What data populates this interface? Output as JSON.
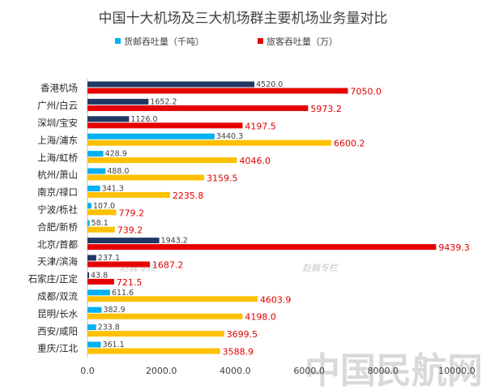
{
  "chart_data": {
    "type": "bar",
    "orientation": "horizontal",
    "title": "中国十大机场及三大机场群主要机场业务量对比",
    "categories": [
      "香港机场",
      "广州/白云",
      "深圳/宝安",
      "上海/浦东",
      "上海/虹桥",
      "杭州/萧山",
      "南京/禄口",
      "宁波/栎社",
      "合肥/新桥",
      "北京/首都",
      "天津/滨海",
      "石家庄/正定",
      "成都/双流",
      "昆明/长水",
      "西安/咸阳",
      "重庆/江北"
    ],
    "series": [
      {
        "name": "货邮吞吐量（千吨）",
        "values": [
          4520.0,
          1652.2,
          1126.0,
          3440.3,
          428.9,
          488.0,
          341.3,
          107.0,
          58.1,
          1943.2,
          237.1,
          43.8,
          611.6,
          382.9,
          233.8,
          361.1
        ],
        "labels": [
          "4520.0",
          "1652.2",
          "1126.0",
          "3440.3",
          "428.9",
          "488.0",
          "341.3",
          "107.0",
          "58.1",
          "1943.2",
          "237.1",
          "43.8",
          "611.6",
          "382.9",
          "233.8",
          "361.1"
        ]
      },
      {
        "name": "旅客吞吐量（万）",
        "values": [
          7050.0,
          5973.2,
          4197.5,
          6600.2,
          4046.0,
          3159.5,
          2235.8,
          779.2,
          739.2,
          9439.3,
          1687.2,
          721.5,
          4603.9,
          4198.0,
          3699.5,
          3588.9
        ],
        "labels": [
          "7050.0",
          "5973.2",
          "4197.5",
          "6600.2",
          "4046.0",
          "3159.5",
          "2235.8",
          "779.2",
          "739.2",
          "9439.3",
          "1687.2",
          "721.5",
          "4603.9",
          "4198.0",
          "3699.5",
          "3588.9"
        ]
      }
    ],
    "freight_colors": [
      "#1f3864",
      "#1f3864",
      "#1f3864",
      "#00b0f0",
      "#00b0f0",
      "#00b0f0",
      "#00b0f0",
      "#00b0f0",
      "#00b0f0",
      "#1f3864",
      "#1f3864",
      "#1f3864",
      "#00b0f0",
      "#00b0f0",
      "#00b0f0",
      "#00b0f0"
    ],
    "passenger_colors": [
      "#e60000",
      "#e60000",
      "#e60000",
      "#ffc000",
      "#ffc000",
      "#ffc000",
      "#ffc000",
      "#ffc000",
      "#ffc000",
      "#e60000",
      "#e60000",
      "#e60000",
      "#ffc000",
      "#ffc000",
      "#ffc000",
      "#ffc000"
    ],
    "legend_colors": [
      "#00b0f0",
      "#e60000"
    ],
    "xlim": [
      0,
      10000
    ],
    "x_ticks": [
      "0.0",
      "2000.0",
      "4000.0",
      "6000.0",
      "8000.0",
      "10000.0"
    ],
    "x_tick_values": [
      0,
      2000,
      4000,
      6000,
      8000,
      10000
    ],
    "legend_position": "top",
    "grid": false
  },
  "watermarks": [
    "赵巍专栏",
    "赵巍专栏"
  ],
  "brand": "中国民航网"
}
